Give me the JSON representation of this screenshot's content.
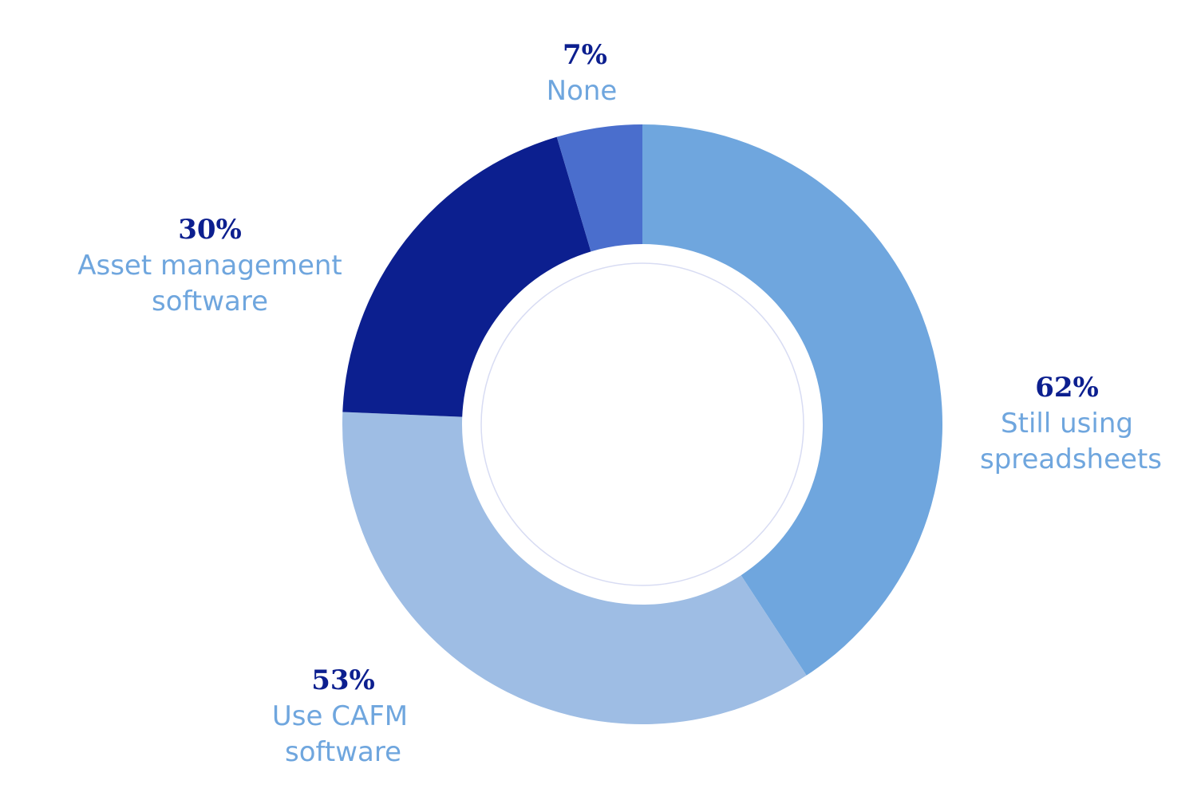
{
  "colors": {
    "pct_text": "#0c1f8f",
    "label_text": "#6fa6de",
    "inner_ring": "#d8dcf3",
    "background": "#ffffff"
  },
  "chart_data": {
    "type": "pie",
    "variant": "donut",
    "title": "",
    "slices": [
      {
        "label_lines": [
          "Still using",
          "spreadsheets"
        ],
        "value_label": "62%",
        "value": 62,
        "color": "#6fa6de"
      },
      {
        "label_lines": [
          "Use CAFM",
          "software"
        ],
        "value_label": "53%",
        "value": 53,
        "color": "#9ebde4"
      },
      {
        "label_lines": [
          "Asset management",
          "software"
        ],
        "value_label": "30%",
        "value": 30,
        "color": "#0c1f8f"
      },
      {
        "label_lines": [
          "None"
        ],
        "value_label": "7%",
        "value": 7,
        "color": "#4a6ecd"
      }
    ],
    "legend": "none"
  }
}
